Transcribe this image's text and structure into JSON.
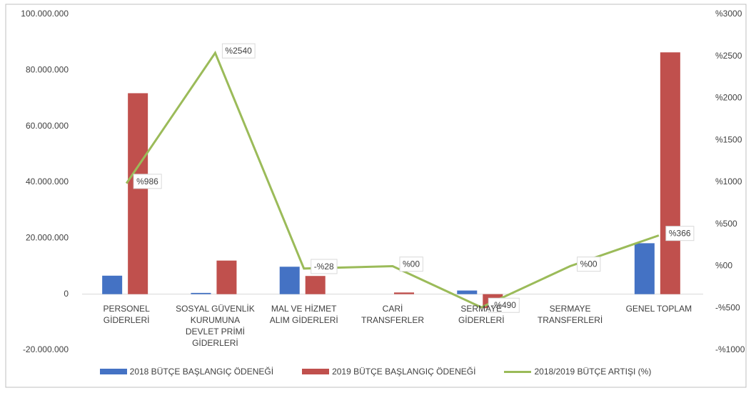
{
  "chart_data": {
    "type": "bar",
    "categories": [
      "PERSONEL GİDERLERİ",
      "SOSYAL GÜVENLİK KURUMUNA DEVLET PRİMİ GİDERLERİ",
      "MAL VE HİZMET ALIM GİDERLERİ",
      "CARİ TRANSFERLER",
      "SERMAYE GİDERLERİ",
      "SERMAYE TRANSFERLERİ",
      "GENEL TOPLAM"
    ],
    "series": [
      {
        "name": "2018 BÜTÇE BAŞLANGIÇ ÖDENEĞİ",
        "type": "bar",
        "color": "#4472c4",
        "values": [
          6600000,
          450000,
          9800000,
          0,
          1300000,
          0,
          18200000
        ]
      },
      {
        "name": "2019 BÜTÇE BAŞLANGIÇ ÖDENEĞİ",
        "type": "bar",
        "color": "#c0504d",
        "values": [
          71800000,
          12000000,
          6500000,
          600000,
          -5000000,
          0,
          86400000
        ]
      },
      {
        "name": "2018/2019 BÜTÇE ARTIŞI (%)",
        "type": "line",
        "axis": "y2",
        "color": "#9bbb59",
        "values": [
          986,
          2540,
          -28,
          0,
          -490,
          0,
          366
        ],
        "value_labels": [
          "%986",
          "%2540",
          "-%28",
          "%00",
          "-%490",
          "%00",
          "%366"
        ]
      }
    ],
    "ylim": [
      -20000000,
      100000000
    ],
    "yticks": [
      {
        "value": -20000000,
        "label": "-20.000.000"
      },
      0,
      {
        "value": 20000000,
        "label": "20.000.000"
      },
      {
        "value": 40000000,
        "label": "40.000.000"
      },
      {
        "value": 60000000,
        "label": "60.000.000"
      },
      {
        "value": 80000000,
        "label": "80.000.000"
      },
      {
        "value": 100000000,
        "label": "100.000.000"
      }
    ],
    "y2lim": [
      -1000,
      3000
    ],
    "y2ticks": [
      {
        "value": -1000,
        "label": "-%1000"
      },
      {
        "value": -500,
        "label": "-%500"
      },
      {
        "value": 0,
        "label": "%00"
      },
      {
        "value": 500,
        "label": "%500"
      },
      {
        "value": 1000,
        "label": "%1000"
      },
      {
        "value": 1500,
        "label": "%1500"
      },
      {
        "value": 2000,
        "label": "%2000"
      },
      {
        "value": 2500,
        "label": "%2500"
      },
      {
        "value": 3000,
        "label": "%3000"
      }
    ],
    "grid": false,
    "legend": "bottom"
  }
}
